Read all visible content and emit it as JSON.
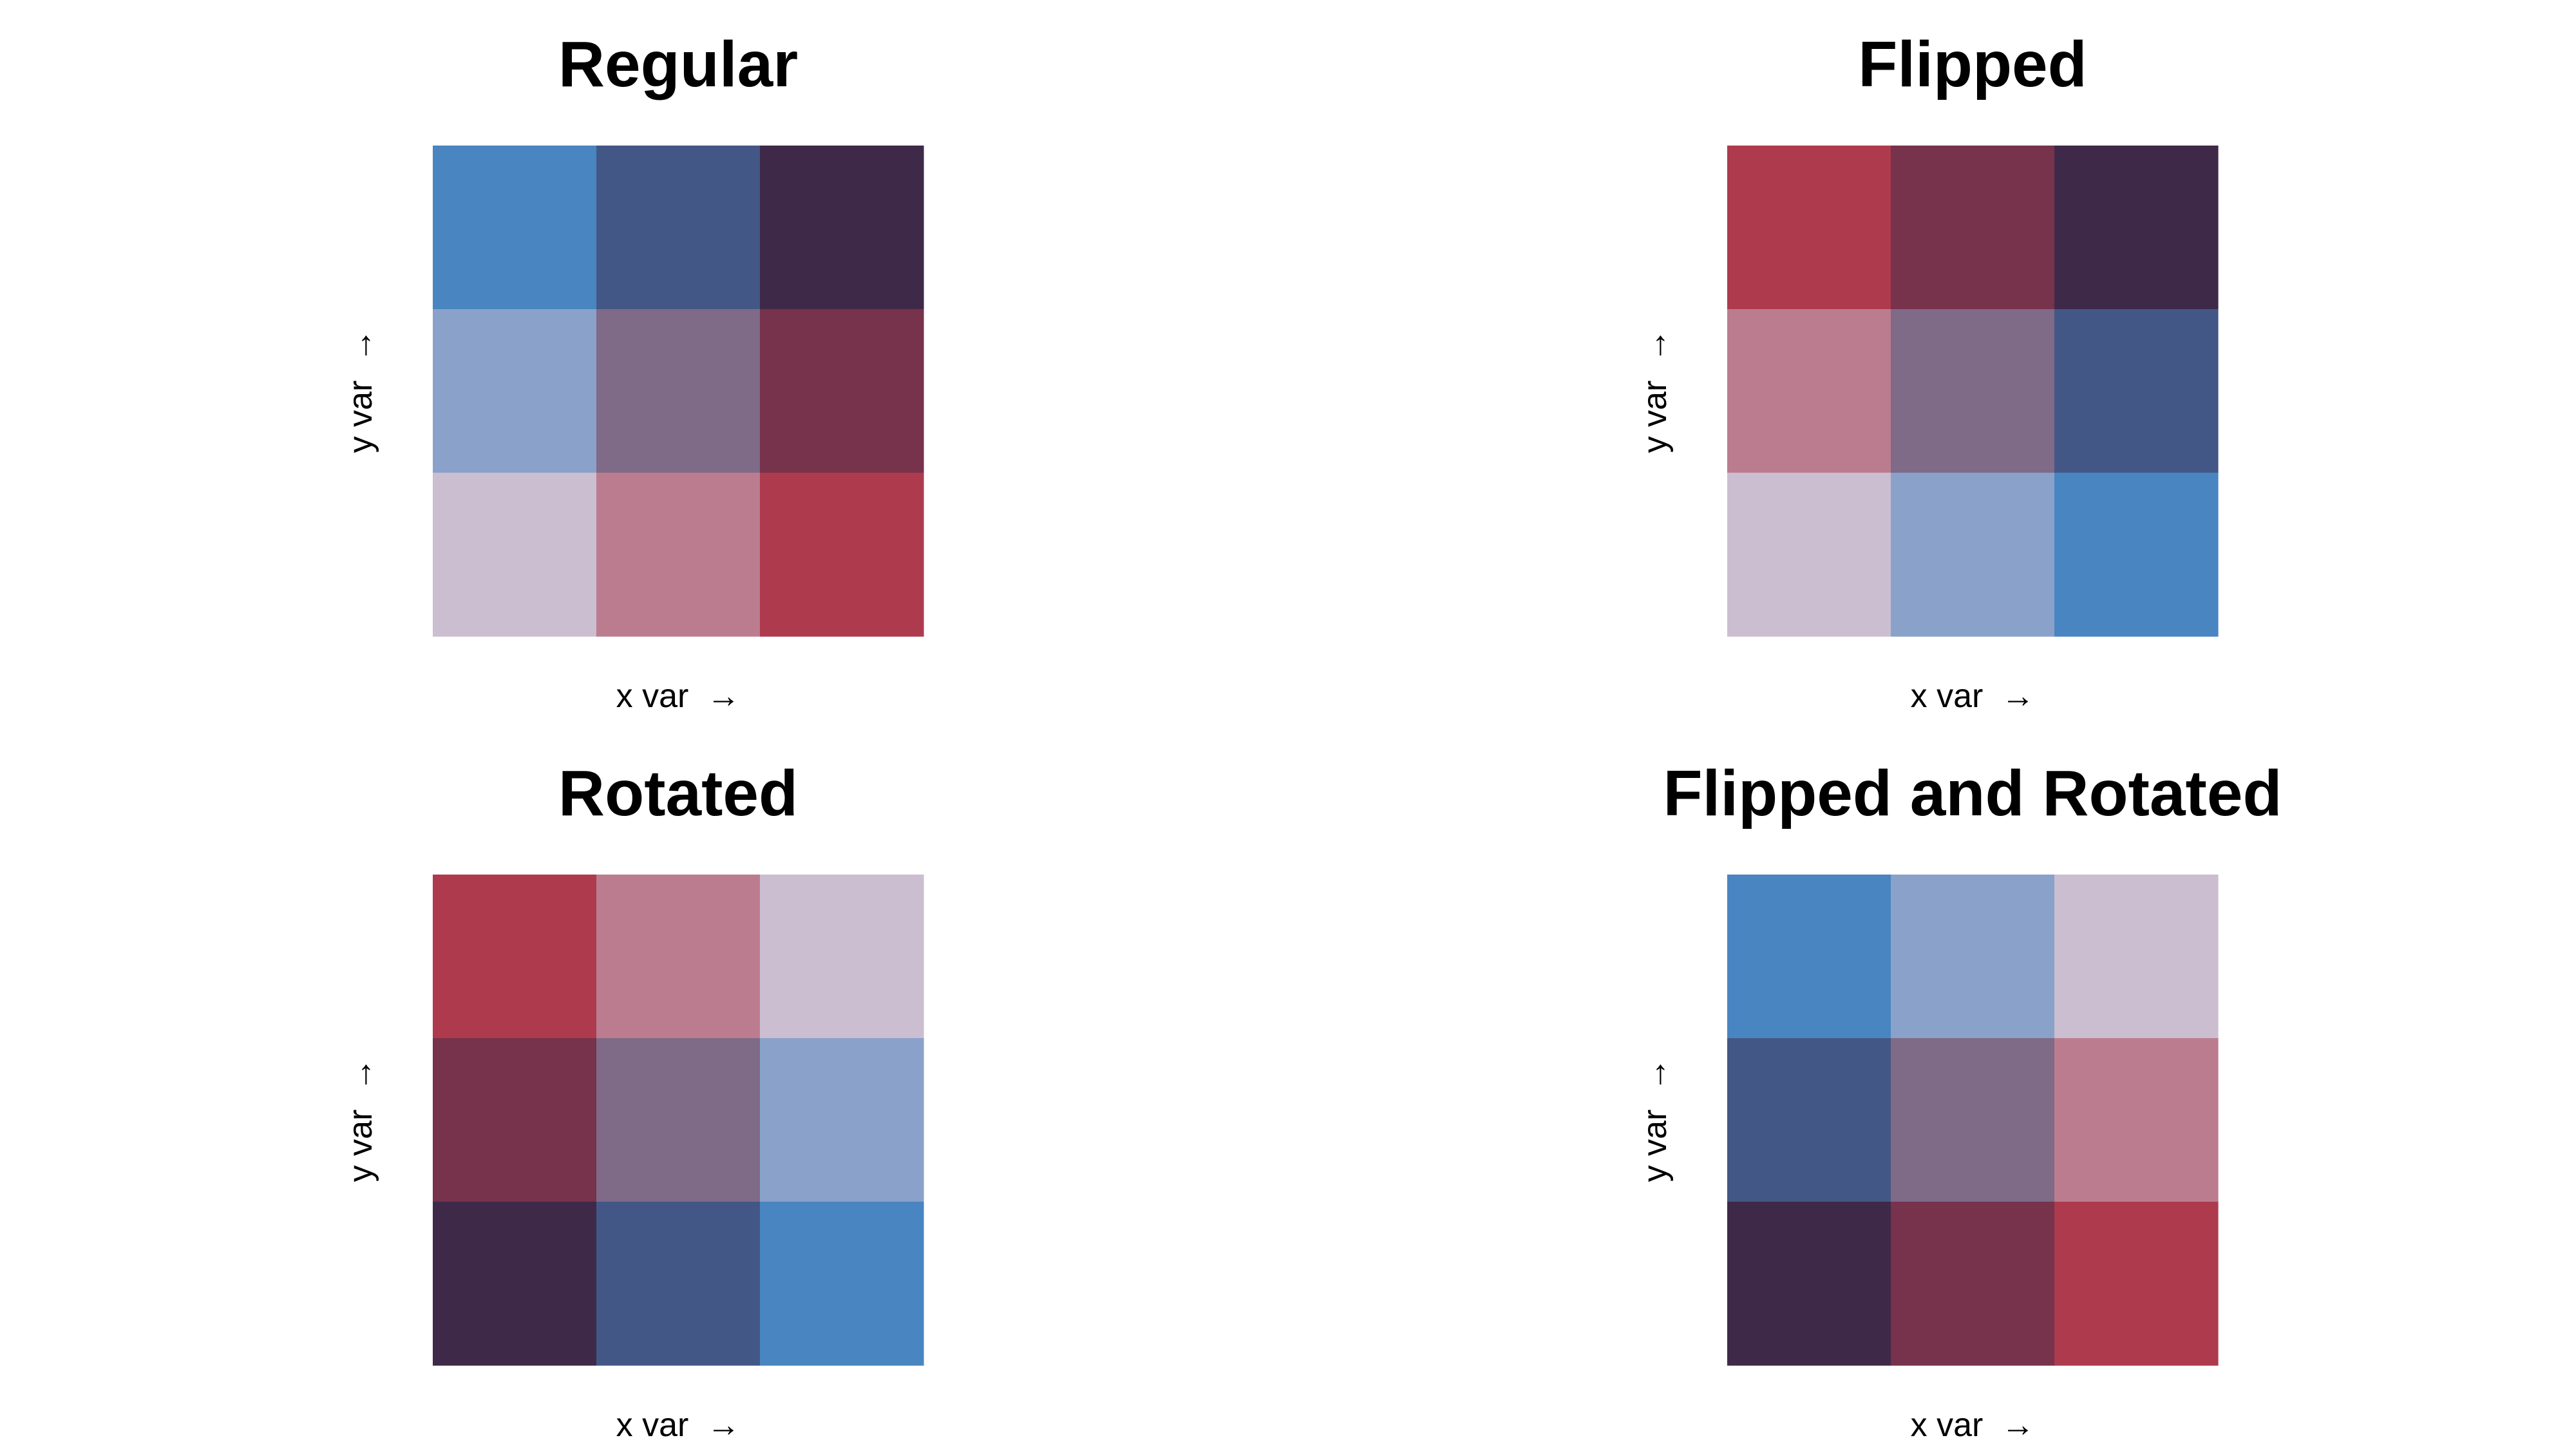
{
  "chart_data": [
    {
      "type": "heatmap",
      "title": "Regular",
      "xlabel": "x var",
      "ylabel": "y var",
      "arrow_x": "→",
      "arrow_y": "→",
      "grid_rows_top_to_bottom": [
        [
          "#4885C1",
          "#435786",
          "#3F2949"
        ],
        [
          "#8AA1CA",
          "#7F6A88",
          "#77324C"
        ],
        [
          "#CBBED0",
          "#BC7C8F",
          "#AE3A4E"
        ]
      ]
    },
    {
      "type": "heatmap",
      "title": "Flipped",
      "xlabel": "x var",
      "ylabel": "y var",
      "arrow_x": "→",
      "arrow_y": "→",
      "grid_rows_top_to_bottom": [
        [
          "#AE3A4E",
          "#77324C",
          "#3F2949"
        ],
        [
          "#BC7C8F",
          "#7F6A88",
          "#435786"
        ],
        [
          "#CBBED0",
          "#8AA1CA",
          "#4885C1"
        ]
      ]
    },
    {
      "type": "heatmap",
      "title": "Rotated",
      "xlabel": "x var",
      "ylabel": "y var",
      "arrow_x": "→",
      "arrow_y": "→",
      "grid_rows_top_to_bottom": [
        [
          "#AE3A4E",
          "#BC7C8F",
          "#CBBED0"
        ],
        [
          "#77324C",
          "#7F6A88",
          "#8AA1CA"
        ],
        [
          "#3F2949",
          "#435786",
          "#4885C1"
        ]
      ]
    },
    {
      "type": "heatmap",
      "title": "Flipped and Rotated",
      "xlabel": "x var",
      "ylabel": "y var",
      "arrow_x": "→",
      "arrow_y": "→",
      "grid_rows_top_to_bottom": [
        [
          "#4885C1",
          "#8AA1CA",
          "#CBBED0"
        ],
        [
          "#435786",
          "#7F6A88",
          "#BC7C8F"
        ],
        [
          "#3F2949",
          "#77324C",
          "#AE3A4E"
        ]
      ]
    }
  ]
}
